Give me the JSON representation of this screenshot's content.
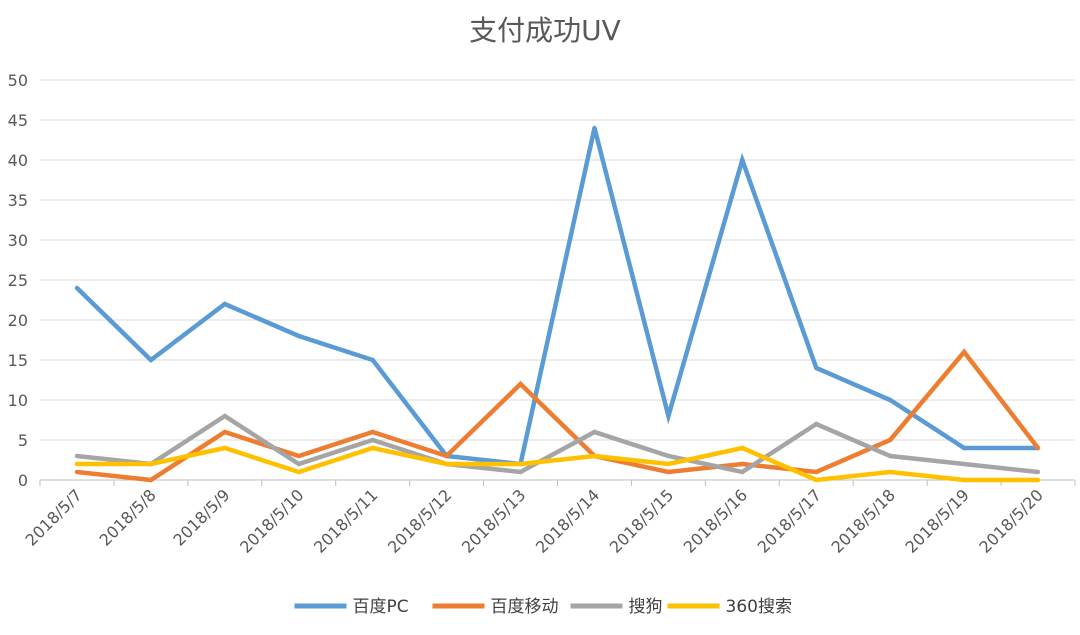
{
  "chart_data": {
    "type": "line",
    "title": "支付成功UV",
    "xlabel": "",
    "ylabel": "",
    "ylim": [
      0,
      50
    ],
    "yticks": [
      0,
      5,
      10,
      15,
      20,
      25,
      30,
      35,
      40,
      45,
      50
    ],
    "grid": true,
    "legend_position": "bottom",
    "categories": [
      "2018/5/7",
      "2018/5/8",
      "2018/5/9",
      "2018/5/10",
      "2018/5/11",
      "2018/5/12",
      "2018/5/13",
      "2018/5/14",
      "2018/5/15",
      "2018/5/16",
      "2018/5/17",
      "2018/5/18",
      "2018/5/19",
      "2018/5/20"
    ],
    "series": [
      {
        "name": "百度PC",
        "color": "#5B9BD5",
        "values": [
          24,
          15,
          22,
          18,
          15,
          3,
          2,
          44,
          8,
          40,
          14,
          10,
          4,
          4
        ]
      },
      {
        "name": "百度移动",
        "color": "#ED7D31",
        "values": [
          1,
          0,
          6,
          3,
          6,
          3,
          12,
          3,
          1,
          2,
          1,
          5,
          16,
          4
        ]
      },
      {
        "name": "搜狗",
        "color": "#A5A5A5",
        "values": [
          3,
          2,
          8,
          2,
          5,
          2,
          1,
          6,
          3,
          1,
          7,
          3,
          2,
          1
        ]
      },
      {
        "name": "360搜索",
        "color": "#FFC000",
        "values": [
          2,
          2,
          4,
          1,
          4,
          2,
          2,
          3,
          2,
          4,
          0,
          1,
          0,
          0
        ]
      }
    ]
  }
}
